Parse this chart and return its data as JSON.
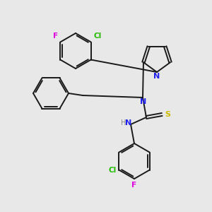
{
  "background_color": "#e8e8e8",
  "bond_color": "#1a1a1a",
  "atom_colors": {
    "N": "#2222ee",
    "S": "#ccbb00",
    "F": "#dd00dd",
    "Cl": "#22bb00",
    "H": "#888888"
  },
  "figsize": [
    3.0,
    3.0
  ],
  "dpi": 100
}
